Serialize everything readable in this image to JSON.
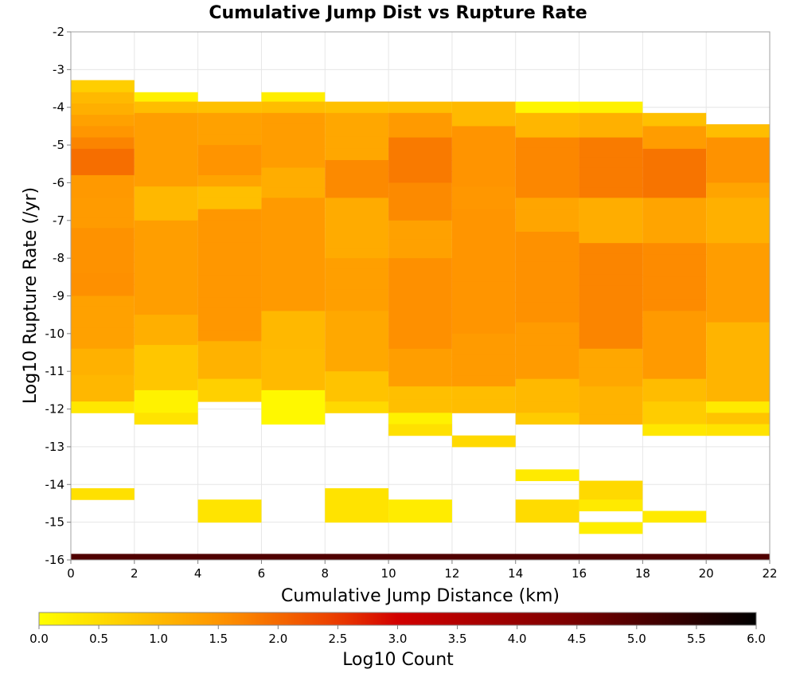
{
  "chart_data": {
    "type": "heatmap",
    "title": "Cumulative Jump Dist vs Rupture Rate",
    "xlabel": "Cumulative Jump Distance (km)",
    "ylabel": "Log10 Rupture Rate (/yr)",
    "xlim": [
      0,
      22
    ],
    "ylim": [
      -16,
      -2
    ],
    "x_ticks": [
      "0",
      "2",
      "4",
      "6",
      "8",
      "10",
      "12",
      "14",
      "16",
      "18",
      "20",
      "22"
    ],
    "y_ticks": [
      "-2",
      "-3",
      "-4",
      "-5",
      "-6",
      "-7",
      "-8",
      "-9",
      "-10",
      "-11",
      "-12",
      "-13",
      "-14",
      "-15",
      "-16"
    ],
    "x_bin_edges": [
      0,
      2,
      4,
      6,
      8,
      10,
      12,
      14,
      16,
      18,
      20,
      22
    ],
    "y_bin_size": 0.28,
    "grid": true,
    "colorbar": {
      "label": "Log10 Count",
      "min": 0.0,
      "max": 6.0,
      "ticks": [
        "0.0",
        "0.5",
        "1.0",
        "1.5",
        "2.0",
        "2.5",
        "3.0",
        "3.5",
        "4.0",
        "4.5",
        "5.0",
        "5.5",
        "6.0"
      ]
    },
    "bottom_row": {
      "y_range": [
        -16,
        -15.84
      ],
      "value": 5.0
    },
    "columns": [
      {
        "x_range": [
          0,
          2
        ],
        "rows": [
          {
            "y_top": -3.28,
            "y_bottom": -3.6,
            "value": 0.7
          },
          {
            "y_top": -3.6,
            "y_bottom": -3.9,
            "value": 1.0
          },
          {
            "y_top": -3.9,
            "y_bottom": -4.2,
            "value": 1.15
          },
          {
            "y_top": -4.2,
            "y_bottom": -4.5,
            "value": 1.35
          },
          {
            "y_top": -4.5,
            "y_bottom": -4.8,
            "value": 1.5
          },
          {
            "y_top": -4.8,
            "y_bottom": -5.1,
            "value": 1.7
          },
          {
            "y_top": -5.1,
            "y_bottom": -5.8,
            "value": 1.9
          },
          {
            "y_top": -5.8,
            "y_bottom": -6.4,
            "value": 1.5
          },
          {
            "y_top": -6.4,
            "y_bottom": -7.2,
            "value": 1.35
          },
          {
            "y_top": -7.2,
            "y_bottom": -8.4,
            "value": 1.55
          },
          {
            "y_top": -8.4,
            "y_bottom": -9.0,
            "value": 1.65
          },
          {
            "y_top": -9.0,
            "y_bottom": -10.4,
            "value": 1.3
          },
          {
            "y_top": -10.4,
            "y_bottom": -11.1,
            "value": 1.15
          },
          {
            "y_top": -11.1,
            "y_bottom": -11.8,
            "value": 0.95
          },
          {
            "y_top": -11.8,
            "y_bottom": -12.1,
            "value": 0.35
          },
          {
            "y_top": -14.1,
            "y_bottom": -14.4,
            "value": 0.45
          }
        ]
      },
      {
        "x_range": [
          2,
          4
        ],
        "rows": [
          {
            "y_top": -3.6,
            "y_bottom": -3.85,
            "value": 0.2
          },
          {
            "y_top": -3.85,
            "y_bottom": -4.15,
            "value": 0.95
          },
          {
            "y_top": -4.15,
            "y_bottom": -6.1,
            "value": 1.35
          },
          {
            "y_top": -6.1,
            "y_bottom": -7.0,
            "value": 1.05
          },
          {
            "y_top": -7.0,
            "y_bottom": -9.5,
            "value": 1.3
          },
          {
            "y_top": -9.5,
            "y_bottom": -10.3,
            "value": 1.15
          },
          {
            "y_top": -10.3,
            "y_bottom": -11.5,
            "value": 0.9
          },
          {
            "y_top": -11.5,
            "y_bottom": -12.1,
            "value": 0.15
          },
          {
            "y_top": -12.1,
            "y_bottom": -12.4,
            "value": 0.4
          }
        ]
      },
      {
        "x_range": [
          4,
          6
        ],
        "rows": [
          {
            "y_top": -3.85,
            "y_bottom": -4.15,
            "value": 0.9
          },
          {
            "y_top": -4.15,
            "y_bottom": -5.0,
            "value": 1.35
          },
          {
            "y_top": -5.0,
            "y_bottom": -5.8,
            "value": 1.6
          },
          {
            "y_top": -5.8,
            "y_bottom": -6.1,
            "value": 1.3
          },
          {
            "y_top": -6.1,
            "y_bottom": -6.7,
            "value": 0.95
          },
          {
            "y_top": -6.7,
            "y_bottom": -10.2,
            "value": 1.4
          },
          {
            "y_top": -10.2,
            "y_bottom": -11.2,
            "value": 1.1
          },
          {
            "y_top": -11.2,
            "y_bottom": -11.8,
            "value": 0.75
          },
          {
            "y_top": -14.4,
            "y_bottom": -15.0,
            "value": 0.35
          }
        ]
      },
      {
        "x_range": [
          6,
          8
        ],
        "rows": [
          {
            "y_top": -3.6,
            "y_bottom": -3.85,
            "value": 0.25
          },
          {
            "y_top": -3.85,
            "y_bottom": -4.15,
            "value": 0.95
          },
          {
            "y_top": -4.15,
            "y_bottom": -5.6,
            "value": 1.4
          },
          {
            "y_top": -5.6,
            "y_bottom": -6.4,
            "value": 1.25
          },
          {
            "y_top": -6.4,
            "y_bottom": -9.4,
            "value": 1.4
          },
          {
            "y_top": -9.4,
            "y_bottom": -10.4,
            "value": 1.05
          },
          {
            "y_top": -10.4,
            "y_bottom": -11.5,
            "value": 0.9
          },
          {
            "y_top": -11.5,
            "y_bottom": -12.4,
            "value": 0.1
          }
        ]
      },
      {
        "x_range": [
          8,
          10
        ],
        "rows": [
          {
            "y_top": -3.85,
            "y_bottom": -4.15,
            "value": 0.9
          },
          {
            "y_top": -4.15,
            "y_bottom": -5.4,
            "value": 1.3
          },
          {
            "y_top": -5.4,
            "y_bottom": -6.4,
            "value": 1.55
          },
          {
            "y_top": -6.4,
            "y_bottom": -8.0,
            "value": 1.2
          },
          {
            "y_top": -8.0,
            "y_bottom": -9.4,
            "value": 1.45
          },
          {
            "y_top": -9.4,
            "y_bottom": -11.0,
            "value": 1.2
          },
          {
            "y_top": -11.0,
            "y_bottom": -11.8,
            "value": 0.9
          },
          {
            "y_top": -11.8,
            "y_bottom": -12.1,
            "value": 0.55
          },
          {
            "y_top": -14.1,
            "y_bottom": -15.0,
            "value": 0.4
          }
        ]
      },
      {
        "x_range": [
          10,
          12
        ],
        "rows": [
          {
            "y_top": -3.85,
            "y_bottom": -4.15,
            "value": 0.95
          },
          {
            "y_top": -4.15,
            "y_bottom": -4.8,
            "value": 1.4
          },
          {
            "y_top": -4.8,
            "y_bottom": -6.0,
            "value": 1.85
          },
          {
            "y_top": -6.0,
            "y_bottom": -7.0,
            "value": 1.55
          },
          {
            "y_top": -7.0,
            "y_bottom": -8.0,
            "value": 1.35
          },
          {
            "y_top": -8.0,
            "y_bottom": -10.4,
            "value": 1.65
          },
          {
            "y_top": -10.4,
            "y_bottom": -11.4,
            "value": 1.35
          },
          {
            "y_top": -11.4,
            "y_bottom": -12.1,
            "value": 0.95
          },
          {
            "y_top": -12.1,
            "y_bottom": -12.4,
            "value": 0.2
          },
          {
            "y_top": -12.4,
            "y_bottom": -12.7,
            "value": 0.45
          },
          {
            "y_top": -14.4,
            "y_bottom": -15.0,
            "value": 0.35
          }
        ]
      },
      {
        "x_range": [
          12,
          14
        ],
        "rows": [
          {
            "y_top": -3.85,
            "y_bottom": -4.5,
            "value": 1.0
          },
          {
            "y_top": -4.5,
            "y_bottom": -6.1,
            "value": 1.6
          },
          {
            "y_top": -6.1,
            "y_bottom": -6.7,
            "value": 1.45
          },
          {
            "y_top": -6.7,
            "y_bottom": -10.0,
            "value": 1.55
          },
          {
            "y_top": -10.0,
            "y_bottom": -11.4,
            "value": 1.35
          },
          {
            "y_top": -11.4,
            "y_bottom": -12.1,
            "value": 0.95
          },
          {
            "y_top": -12.7,
            "y_bottom": -13.0,
            "value": 0.55
          }
        ]
      },
      {
        "x_range": [
          14,
          16
        ],
        "rows": [
          {
            "y_top": -3.85,
            "y_bottom": -4.15,
            "value": 0.15
          },
          {
            "y_top": -4.15,
            "y_bottom": -4.8,
            "value": 1.05
          },
          {
            "y_top": -4.8,
            "y_bottom": -6.4,
            "value": 1.75
          },
          {
            "y_top": -6.4,
            "y_bottom": -7.3,
            "value": 1.25
          },
          {
            "y_top": -7.3,
            "y_bottom": -9.7,
            "value": 1.6
          },
          {
            "y_top": -9.7,
            "y_bottom": -11.2,
            "value": 1.35
          },
          {
            "y_top": -11.2,
            "y_bottom": -12.1,
            "value": 1.0
          },
          {
            "y_top": -12.1,
            "y_bottom": -12.4,
            "value": 0.75
          },
          {
            "y_top": -13.6,
            "y_bottom": -13.9,
            "value": 0.3
          },
          {
            "y_top": -14.4,
            "y_bottom": -15.0,
            "value": 0.55
          }
        ]
      },
      {
        "x_range": [
          16,
          18
        ],
        "rows": [
          {
            "y_top": -3.85,
            "y_bottom": -4.15,
            "value": 0.2
          },
          {
            "y_top": -4.15,
            "y_bottom": -4.8,
            "value": 1.05
          },
          {
            "y_top": -4.8,
            "y_bottom": -6.4,
            "value": 1.8
          },
          {
            "y_top": -6.4,
            "y_bottom": -7.6,
            "value": 1.25
          },
          {
            "y_top": -7.6,
            "y_bottom": -10.4,
            "value": 1.65
          },
          {
            "y_top": -10.4,
            "y_bottom": -11.4,
            "value": 1.3
          },
          {
            "y_top": -11.4,
            "y_bottom": -12.4,
            "value": 1.0
          },
          {
            "y_top": -13.9,
            "y_bottom": -14.4,
            "value": 0.55
          },
          {
            "y_top": -14.4,
            "y_bottom": -14.7,
            "value": 0.3
          },
          {
            "y_top": -15.0,
            "y_bottom": -15.3,
            "value": 0.25
          }
        ]
      },
      {
        "x_range": [
          18,
          20
        ],
        "rows": [
          {
            "y_top": -4.15,
            "y_bottom": -4.5,
            "value": 0.9
          },
          {
            "y_top": -4.5,
            "y_bottom": -5.1,
            "value": 1.45
          },
          {
            "y_top": -5.1,
            "y_bottom": -6.4,
            "value": 1.8
          },
          {
            "y_top": -6.4,
            "y_bottom": -7.6,
            "value": 1.3
          },
          {
            "y_top": -7.6,
            "y_bottom": -9.4,
            "value": 1.7
          },
          {
            "y_top": -9.4,
            "y_bottom": -11.2,
            "value": 1.4
          },
          {
            "y_top": -11.2,
            "y_bottom": -11.8,
            "value": 1.0
          },
          {
            "y_top": -11.8,
            "y_bottom": -12.4,
            "value": 0.65
          },
          {
            "y_top": -12.4,
            "y_bottom": -12.7,
            "value": 0.35
          },
          {
            "y_top": -14.7,
            "y_bottom": -15.0,
            "value": 0.3
          }
        ]
      },
      {
        "x_range": [
          20,
          22
        ],
        "rows": [
          {
            "y_top": -4.45,
            "y_bottom": -4.8,
            "value": 0.95
          },
          {
            "y_top": -4.8,
            "y_bottom": -6.0,
            "value": 1.5
          },
          {
            "y_top": -6.0,
            "y_bottom": -6.4,
            "value": 1.3
          },
          {
            "y_top": -6.4,
            "y_bottom": -7.6,
            "value": 1.05
          },
          {
            "y_top": -7.6,
            "y_bottom": -9.7,
            "value": 1.4
          },
          {
            "y_top": -9.7,
            "y_bottom": -11.8,
            "value": 1.15
          },
          {
            "y_top": -11.8,
            "y_bottom": -12.1,
            "value": 0.3
          },
          {
            "y_top": -12.1,
            "y_bottom": -12.4,
            "value": 0.85
          },
          {
            "y_top": -12.4,
            "y_bottom": -12.7,
            "value": 0.4
          }
        ]
      }
    ]
  }
}
